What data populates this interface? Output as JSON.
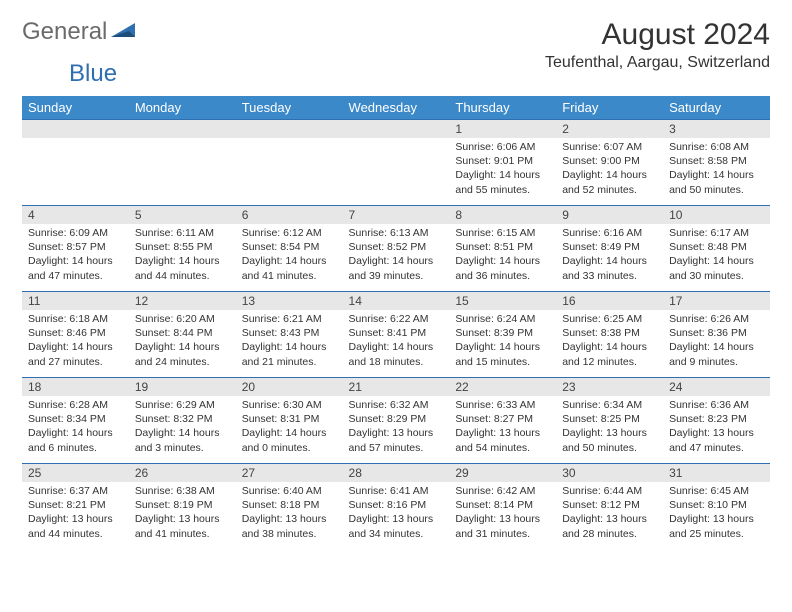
{
  "logo": {
    "text_gray": "General",
    "text_blue": "Blue"
  },
  "title": "August 2024",
  "subtitle": "Teufenthal, Aargau, Switzerland",
  "colors": {
    "header_bg": "#3b89c9",
    "header_text": "#ffffff",
    "row_divider": "#2f6fb0",
    "daynum_bg": "#e7e7e7",
    "body_text": "#333333",
    "logo_gray": "#6b6b6b",
    "logo_blue": "#2f6fb0"
  },
  "day_headers": [
    "Sunday",
    "Monday",
    "Tuesday",
    "Wednesday",
    "Thursday",
    "Friday",
    "Saturday"
  ],
  "weeks": [
    [
      null,
      null,
      null,
      null,
      {
        "n": "1",
        "sr": "6:06 AM",
        "ss": "9:01 PM",
        "dl": "14 hours and 55 minutes."
      },
      {
        "n": "2",
        "sr": "6:07 AM",
        "ss": "9:00 PM",
        "dl": "14 hours and 52 minutes."
      },
      {
        "n": "3",
        "sr": "6:08 AM",
        "ss": "8:58 PM",
        "dl": "14 hours and 50 minutes."
      }
    ],
    [
      {
        "n": "4",
        "sr": "6:09 AM",
        "ss": "8:57 PM",
        "dl": "14 hours and 47 minutes."
      },
      {
        "n": "5",
        "sr": "6:11 AM",
        "ss": "8:55 PM",
        "dl": "14 hours and 44 minutes."
      },
      {
        "n": "6",
        "sr": "6:12 AM",
        "ss": "8:54 PM",
        "dl": "14 hours and 41 minutes."
      },
      {
        "n": "7",
        "sr": "6:13 AM",
        "ss": "8:52 PM",
        "dl": "14 hours and 39 minutes."
      },
      {
        "n": "8",
        "sr": "6:15 AM",
        "ss": "8:51 PM",
        "dl": "14 hours and 36 minutes."
      },
      {
        "n": "9",
        "sr": "6:16 AM",
        "ss": "8:49 PM",
        "dl": "14 hours and 33 minutes."
      },
      {
        "n": "10",
        "sr": "6:17 AM",
        "ss": "8:48 PM",
        "dl": "14 hours and 30 minutes."
      }
    ],
    [
      {
        "n": "11",
        "sr": "6:18 AM",
        "ss": "8:46 PM",
        "dl": "14 hours and 27 minutes."
      },
      {
        "n": "12",
        "sr": "6:20 AM",
        "ss": "8:44 PM",
        "dl": "14 hours and 24 minutes."
      },
      {
        "n": "13",
        "sr": "6:21 AM",
        "ss": "8:43 PM",
        "dl": "14 hours and 21 minutes."
      },
      {
        "n": "14",
        "sr": "6:22 AM",
        "ss": "8:41 PM",
        "dl": "14 hours and 18 minutes."
      },
      {
        "n": "15",
        "sr": "6:24 AM",
        "ss": "8:39 PM",
        "dl": "14 hours and 15 minutes."
      },
      {
        "n": "16",
        "sr": "6:25 AM",
        "ss": "8:38 PM",
        "dl": "14 hours and 12 minutes."
      },
      {
        "n": "17",
        "sr": "6:26 AM",
        "ss": "8:36 PM",
        "dl": "14 hours and 9 minutes."
      }
    ],
    [
      {
        "n": "18",
        "sr": "6:28 AM",
        "ss": "8:34 PM",
        "dl": "14 hours and 6 minutes."
      },
      {
        "n": "19",
        "sr": "6:29 AM",
        "ss": "8:32 PM",
        "dl": "14 hours and 3 minutes."
      },
      {
        "n": "20",
        "sr": "6:30 AM",
        "ss": "8:31 PM",
        "dl": "14 hours and 0 minutes."
      },
      {
        "n": "21",
        "sr": "6:32 AM",
        "ss": "8:29 PM",
        "dl": "13 hours and 57 minutes."
      },
      {
        "n": "22",
        "sr": "6:33 AM",
        "ss": "8:27 PM",
        "dl": "13 hours and 54 minutes."
      },
      {
        "n": "23",
        "sr": "6:34 AM",
        "ss": "8:25 PM",
        "dl": "13 hours and 50 minutes."
      },
      {
        "n": "24",
        "sr": "6:36 AM",
        "ss": "8:23 PM",
        "dl": "13 hours and 47 minutes."
      }
    ],
    [
      {
        "n": "25",
        "sr": "6:37 AM",
        "ss": "8:21 PM",
        "dl": "13 hours and 44 minutes."
      },
      {
        "n": "26",
        "sr": "6:38 AM",
        "ss": "8:19 PM",
        "dl": "13 hours and 41 minutes."
      },
      {
        "n": "27",
        "sr": "6:40 AM",
        "ss": "8:18 PM",
        "dl": "13 hours and 38 minutes."
      },
      {
        "n": "28",
        "sr": "6:41 AM",
        "ss": "8:16 PM",
        "dl": "13 hours and 34 minutes."
      },
      {
        "n": "29",
        "sr": "6:42 AM",
        "ss": "8:14 PM",
        "dl": "13 hours and 31 minutes."
      },
      {
        "n": "30",
        "sr": "6:44 AM",
        "ss": "8:12 PM",
        "dl": "13 hours and 28 minutes."
      },
      {
        "n": "31",
        "sr": "6:45 AM",
        "ss": "8:10 PM",
        "dl": "13 hours and 25 minutes."
      }
    ]
  ],
  "labels": {
    "sunrise": "Sunrise:",
    "sunset": "Sunset:",
    "daylight": "Daylight:"
  }
}
